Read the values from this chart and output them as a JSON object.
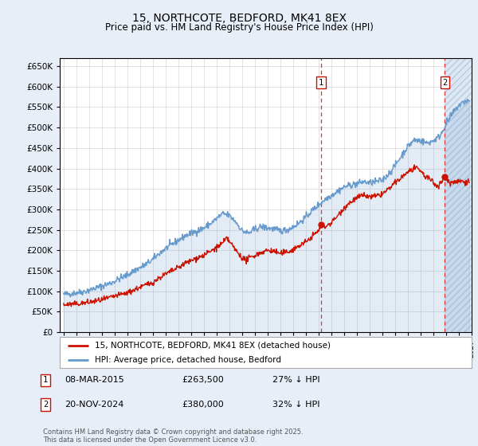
{
  "title": "15, NORTHCOTE, BEDFORD, MK41 8EX",
  "subtitle": "Price paid vs. HM Land Registry's House Price Index (HPI)",
  "ylim": [
    0,
    670000
  ],
  "yticks": [
    0,
    50000,
    100000,
    150000,
    200000,
    250000,
    300000,
    350000,
    400000,
    450000,
    500000,
    550000,
    600000,
    650000
  ],
  "xlim_start": 1995.0,
  "xlim_end": 2027.0,
  "bg_color": "#e8eef8",
  "plot_bg_color": "#ffffff",
  "hpi_color": "#6699cc",
  "price_color": "#cc1100",
  "sale1_date": 2015.185,
  "sale1_price": 263500,
  "sale1_label": "1",
  "sale2_date": 2024.895,
  "sale2_price": 380000,
  "sale2_label": "2",
  "legend_line1": "15, NORTHCOTE, BEDFORD, MK41 8EX (detached house)",
  "legend_line2": "HPI: Average price, detached house, Bedford",
  "note1_label": "1",
  "note1_date": "08-MAR-2015",
  "note1_price": "£263,500",
  "note1_hpi": "27% ↓ HPI",
  "note2_label": "2",
  "note2_date": "20-NOV-2024",
  "note2_price": "£380,000",
  "note2_hpi": "32% ↓ HPI",
  "footer": "Contains HM Land Registry data © Crown copyright and database right 2025.\nThis data is licensed under the Open Government Licence v3.0."
}
